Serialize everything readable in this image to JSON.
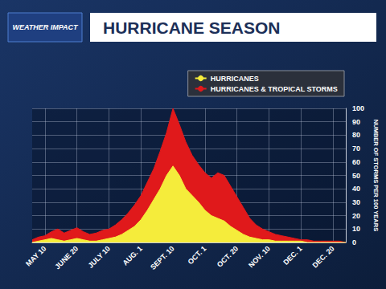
{
  "chart_data": {
    "type": "area",
    "title": "HURRICANE SEASON",
    "annotations": [
      "WEATHER IMPACT"
    ],
    "y_label": "NUMBER OF STORMS PER 100 YEARS",
    "categories": [
      null,
      null,
      "MAY 10",
      null,
      null,
      null,
      null,
      "JUNE 20",
      null,
      null,
      null,
      null,
      "JULY 10",
      null,
      null,
      null,
      null,
      "AUG. 1",
      null,
      null,
      null,
      null,
      "SEPT. 10",
      null,
      null,
      null,
      null,
      "OCT. 1",
      null,
      null,
      null,
      null,
      "OCT. 20",
      null,
      null,
      null,
      null,
      "NOV. 10",
      null,
      null,
      null,
      null,
      "DEC. 1",
      null,
      null,
      null,
      null,
      "DEC. 20",
      null,
      null
    ],
    "series": [
      {
        "name": "HURRICANES",
        "color": "#f5ec3b",
        "values": [
          0,
          1,
          2,
          3,
          2,
          1,
          2,
          3,
          2,
          1,
          1,
          2,
          3,
          4,
          6,
          9,
          12,
          17,
          24,
          32,
          40,
          50,
          57,
          50,
          40,
          35,
          30,
          24,
          20,
          18,
          16,
          12,
          9,
          6,
          4,
          3,
          2,
          2,
          1,
          1,
          1,
          1,
          1,
          0,
          0,
          0,
          0,
          0,
          0,
          0
        ]
      },
      {
        "name": "HURRICANES & TROPICAL STORMS",
        "color": "#e0191b",
        "values": [
          2,
          4,
          5,
          8,
          10,
          7,
          9,
          11,
          8,
          6,
          7,
          9,
          10,
          13,
          17,
          22,
          28,
          35,
          45,
          55,
          68,
          82,
          100,
          88,
          75,
          65,
          58,
          52,
          48,
          52,
          50,
          42,
          34,
          26,
          18,
          13,
          10,
          8,
          6,
          5,
          4,
          3,
          2,
          2,
          1,
          1,
          1,
          1,
          1,
          0
        ]
      }
    ],
    "ylim": [
      0,
      100
    ],
    "yticks": [
      0,
      10,
      20,
      30,
      40,
      50,
      60,
      70,
      80,
      90,
      100
    ],
    "grid": true,
    "legend": "top-right"
  }
}
